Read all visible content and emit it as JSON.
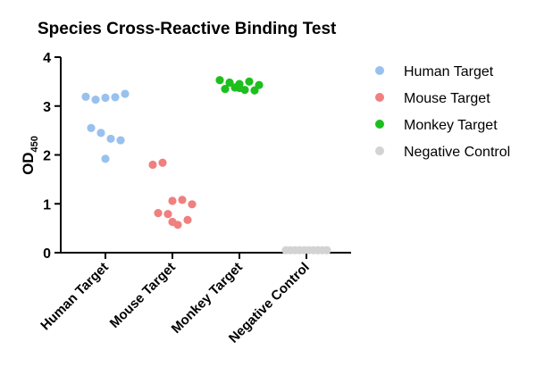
{
  "chart_data": {
    "type": "scatter",
    "title": "Species Cross-Reactive Binding Test",
    "ylabel": "OD",
    "ylabel_subscript": "450",
    "xlabel": "",
    "ylim": [
      0,
      4
    ],
    "yticks": [
      0,
      1,
      2,
      3,
      4
    ],
    "grid": false,
    "legend_position": "right",
    "categories": [
      "Human Target",
      "Mouse Target",
      "Monkey Target",
      "Negative Control"
    ],
    "series": [
      {
        "name": "Human Target",
        "color": "#99c1ee",
        "values": [
          3.19,
          3.13,
          3.17,
          3.18,
          3.25,
          2.55,
          2.45,
          2.33,
          2.3,
          1.92
        ]
      },
      {
        "name": "Mouse Target",
        "color": "#f08080",
        "values": [
          1.8,
          1.84,
          1.06,
          1.08,
          0.99,
          0.81,
          0.79,
          0.57,
          0.67,
          0.63
        ]
      },
      {
        "name": "Monkey Target",
        "color": "#1dbf1d",
        "values": [
          3.53,
          3.48,
          3.45,
          3.5,
          3.43,
          3.35,
          3.38,
          3.33,
          3.32,
          3.37
        ]
      },
      {
        "name": "Negative Control",
        "color": "#d3d3d3",
        "values": [
          0.05,
          0.05,
          0.05,
          0.05,
          0.05,
          0.05,
          0.05,
          0.05,
          0.05,
          0.05
        ]
      }
    ]
  }
}
